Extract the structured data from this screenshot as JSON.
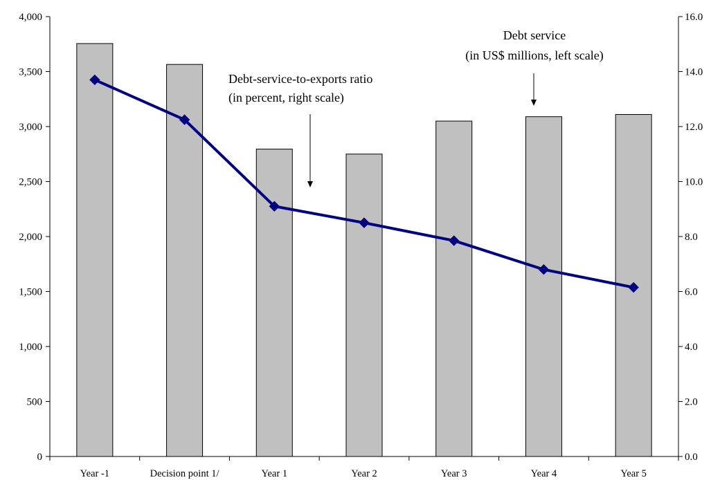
{
  "chart_data": {
    "type": "bar",
    "categories": [
      "Year -1",
      "Decision point 1/",
      "Year 1",
      "Year 2",
      "Year 3",
      "Year 4",
      "Year 5"
    ],
    "series": [
      {
        "type": "bar",
        "axis": "left",
        "values": [
          3755,
          3565,
          2795,
          2750,
          3050,
          3090,
          3110
        ],
        "color": "#c0c0c0"
      },
      {
        "type": "line",
        "axis": "right",
        "values": [
          13.7,
          12.25,
          9.1,
          8.5,
          7.85,
          6.8,
          6.15
        ],
        "color": "#000080",
        "marker": "diamond"
      }
    ],
    "y_left": {
      "lim": [
        0,
        4000
      ],
      "ticks": [
        0,
        500,
        1000,
        1500,
        2000,
        2500,
        3000,
        3500,
        4000
      ],
      "tick_labels": [
        "0",
        "500",
        "1,000",
        "1,500",
        "2,000",
        "2,500",
        "3,000",
        "3,500",
        "4,000"
      ]
    },
    "y_right": {
      "lim": [
        0,
        16
      ],
      "ticks": [
        0,
        2,
        4,
        6,
        8,
        10,
        12,
        14,
        16
      ],
      "tick_labels": [
        "0.0",
        "2.0",
        "4.0",
        "6.0",
        "8.0",
        "10.0",
        "12.0",
        "14.0",
        "16.0"
      ]
    },
    "annotations": [
      {
        "lines": [
          "Debt-service-to-exports ratio",
          "(in percent, right scale)"
        ]
      },
      {
        "lines": [
          "Debt service",
          "(in US$ millions, left scale)"
        ]
      }
    ],
    "grid": false,
    "legend": "none"
  }
}
